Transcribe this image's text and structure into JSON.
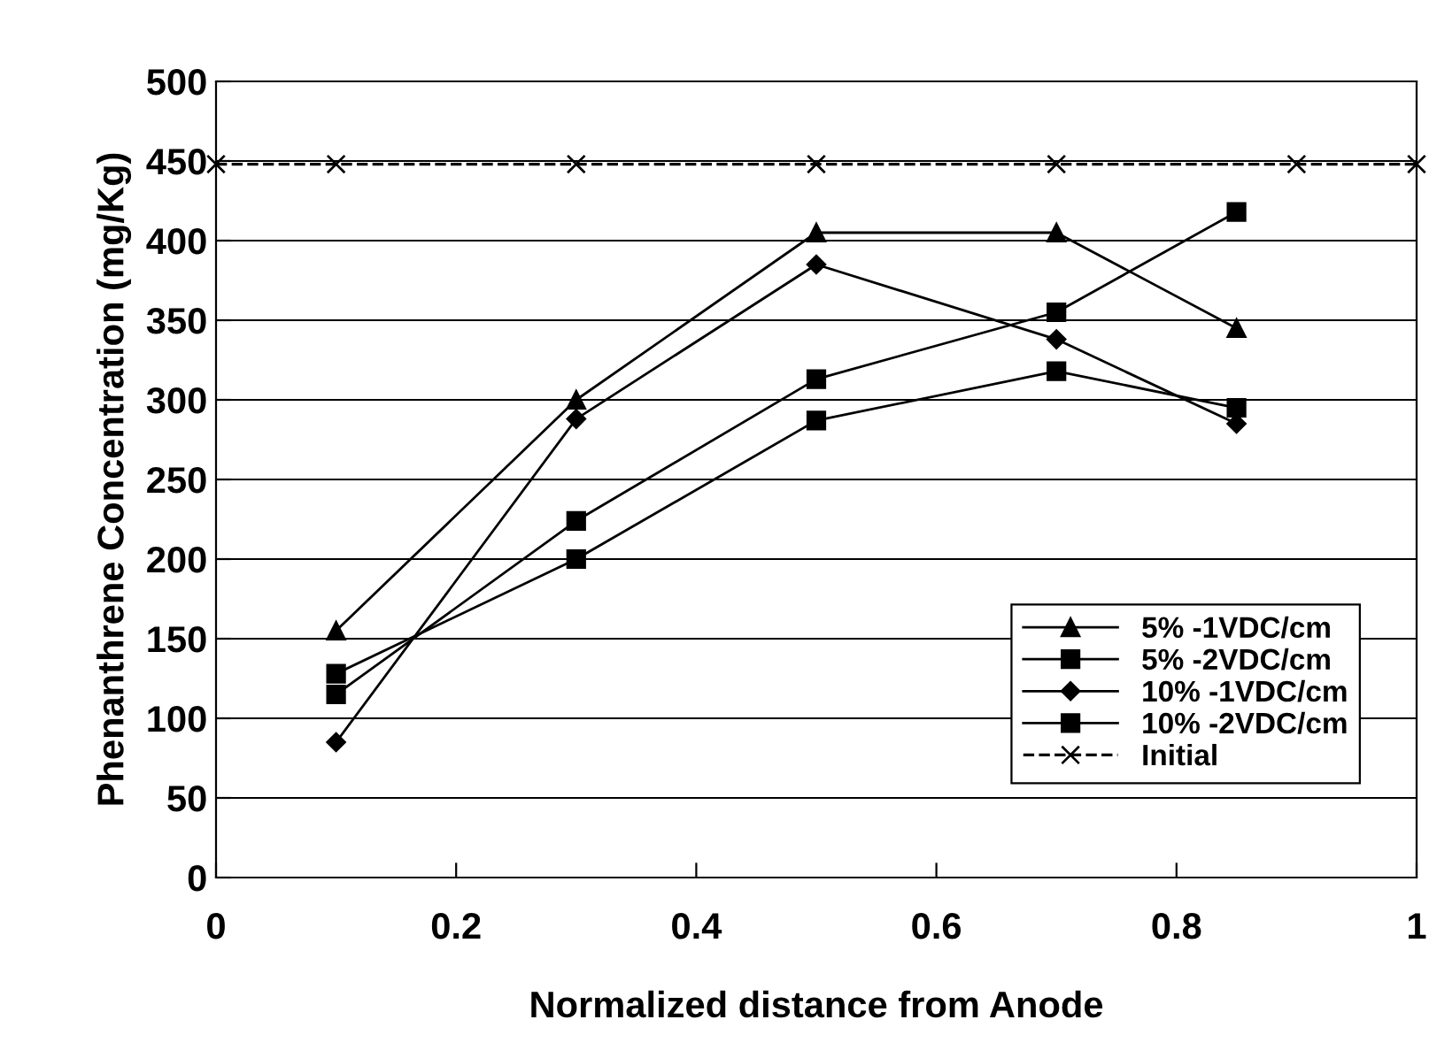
{
  "chart_data": {
    "type": "line",
    "xlabel": "Normalized distance from Anode",
    "ylabel": "Phenanthrene Concentration (mg/Kg)",
    "x": [
      0.1,
      0.3,
      0.5,
      0.7,
      0.85
    ],
    "series": [
      {
        "name": "5% -1VDC/cm",
        "color": "#000000",
        "marker": "triangle",
        "values": [
          155,
          300,
          405,
          405,
          345
        ]
      },
      {
        "name": "5% -2VDC/cm",
        "color": "#000000",
        "marker": "square",
        "values": [
          115,
          224,
          313,
          355,
          418
        ]
      },
      {
        "name": "10% -1VDC/cm",
        "color": "#000000",
        "marker": "diamond",
        "values": [
          85,
          288,
          385,
          338,
          285
        ]
      },
      {
        "name": "10% -2VDC/cm",
        "color": "#000000",
        "marker": "square",
        "values": [
          128,
          200,
          287,
          318,
          295
        ]
      },
      {
        "name": "Initial",
        "color": "#000000",
        "marker": "cross",
        "line_style": "dashed",
        "x": [
          0,
          0.1,
          0.3,
          0.5,
          0.7,
          0.9,
          1
        ],
        "values": [
          448,
          448,
          448,
          448,
          448,
          448,
          448
        ]
      }
    ],
    "xlim": [
      0,
      1
    ],
    "xticks": [
      0,
      0.2,
      0.4,
      0.6,
      0.8,
      1
    ],
    "ylim": [
      0,
      500
    ],
    "yticks": [
      0,
      50,
      100,
      150,
      200,
      250,
      300,
      350,
      400,
      450,
      500
    ],
    "grid": "y",
    "legend": "lower right"
  }
}
